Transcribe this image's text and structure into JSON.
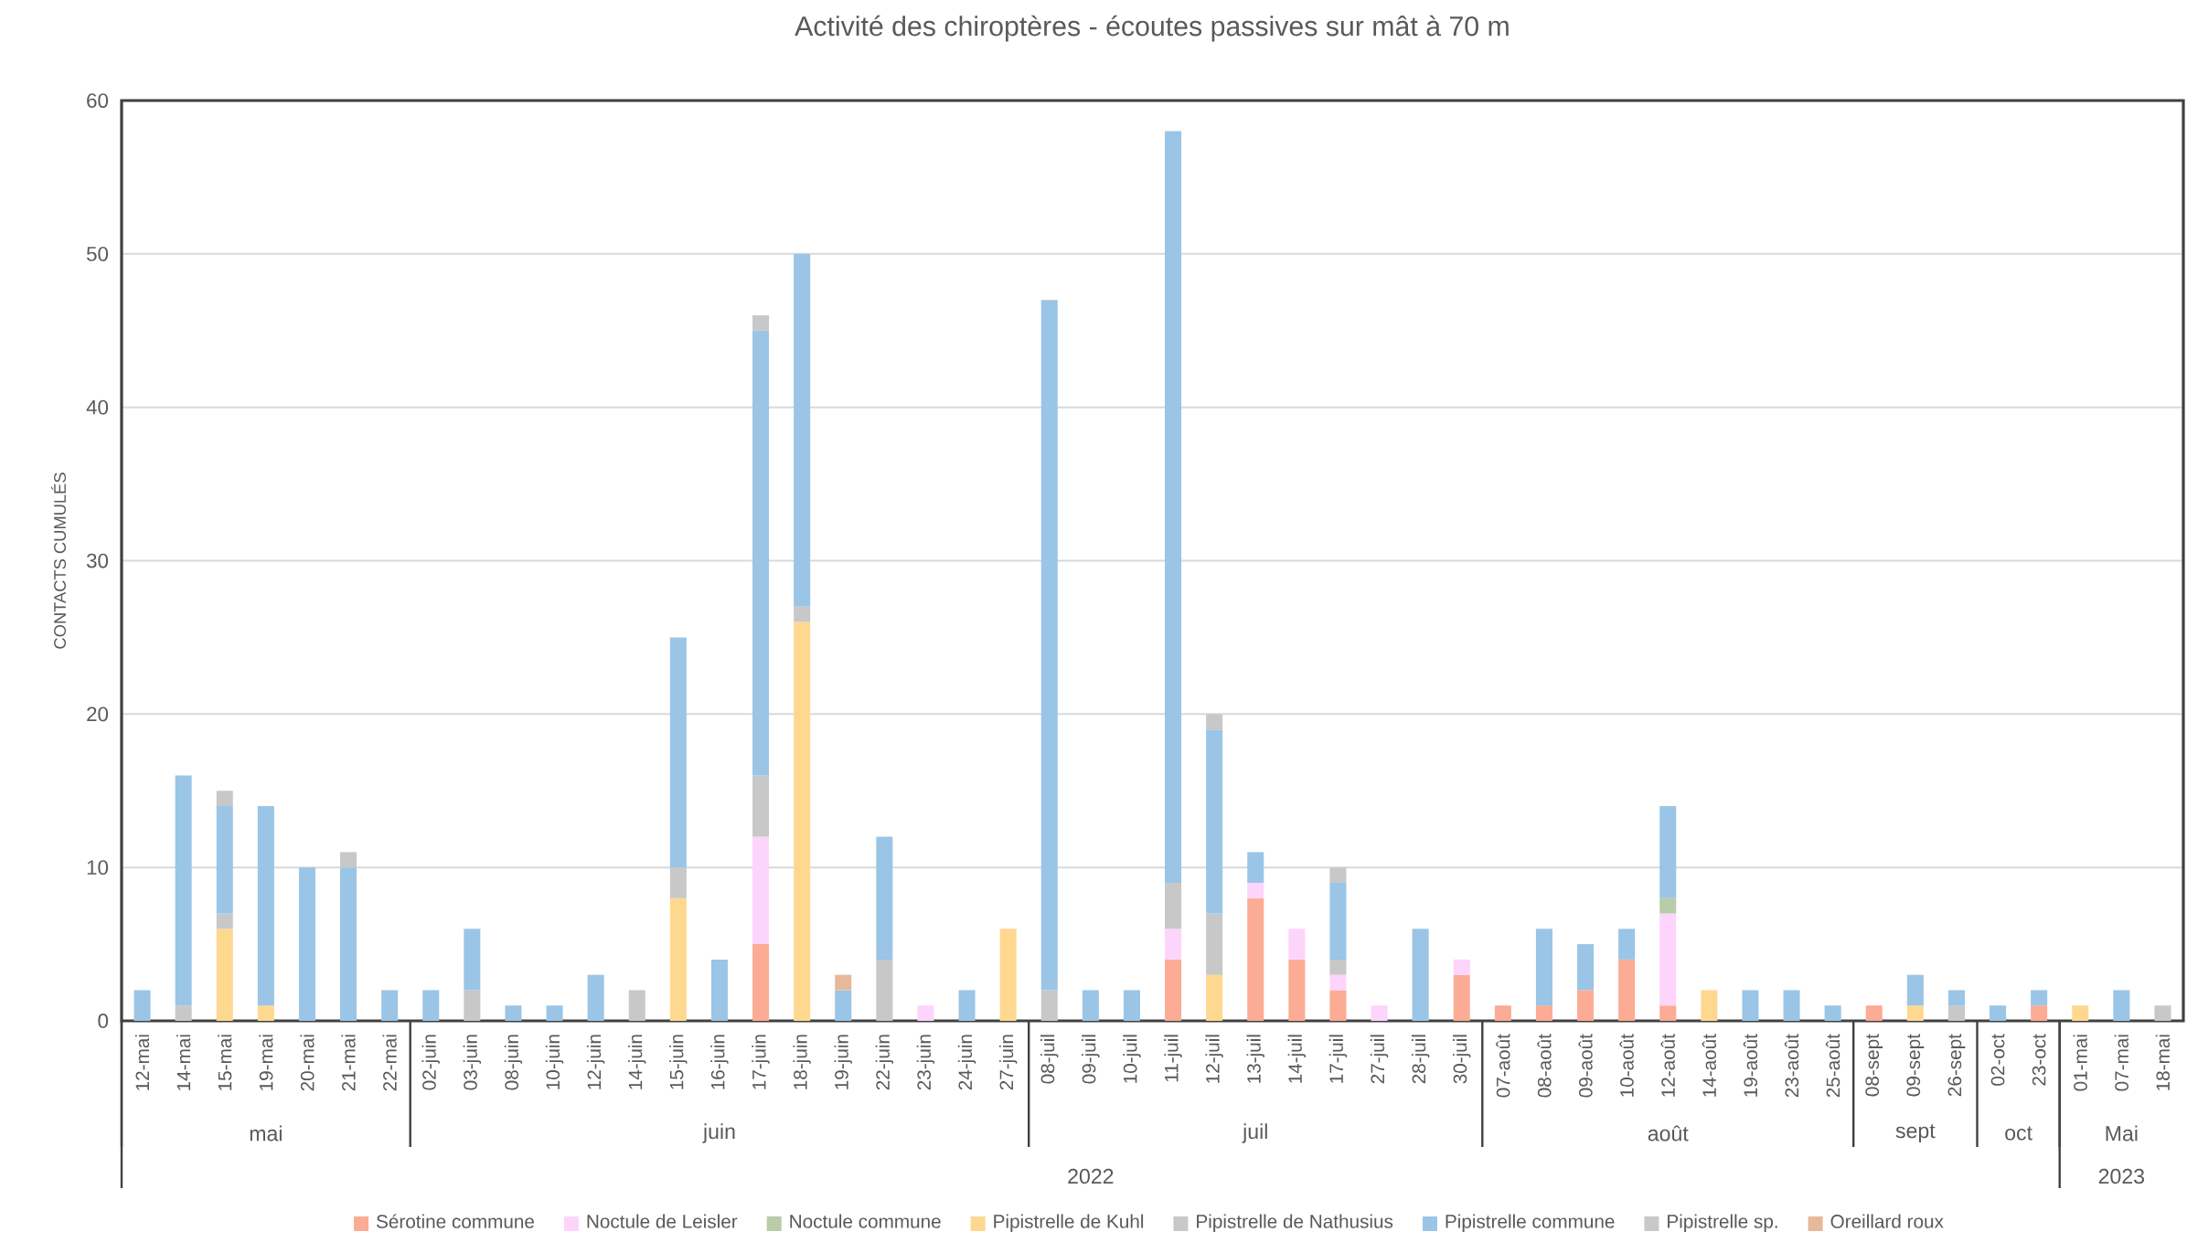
{
  "chart_data": {
    "type": "bar",
    "stacked": true,
    "title": "Activité des chiroptères - écoutes passives sur mât à 70 m",
    "ylabel": "CONTACTS CUMULÉS",
    "categories": [
      "12-mai",
      "14-mai",
      "15-mai",
      "19-mai",
      "20-mai",
      "21-mai",
      "22-mai",
      "02-juin",
      "03-juin",
      "08-juin",
      "10-juin",
      "12-juin",
      "14-juin",
      "15-juin",
      "16-juin",
      "17-juin",
      "18-juin",
      "19-juin",
      "22-juin",
      "23-juin",
      "24-juin",
      "27-juin",
      "08-juil",
      "09-juil",
      "10-juil",
      "11-juil",
      "12-juil",
      "13-juil",
      "14-juil",
      "17-juil",
      "27-juil",
      "28-juil",
      "30-juil",
      "07-août",
      "08-août",
      "09-août",
      "10-août",
      "12-août",
      "14-août",
      "19-août",
      "23-août",
      "25-août",
      "08-sept",
      "09-sept",
      "26-sept",
      "02-oct",
      "23-oct",
      "01-mai",
      "07-mai",
      "18-mai"
    ],
    "series": [
      {
        "name": "Sérotine commune",
        "color": "#fcab94",
        "values": [
          null,
          null,
          null,
          null,
          null,
          null,
          null,
          null,
          null,
          null,
          null,
          null,
          null,
          null,
          null,
          5,
          null,
          null,
          null,
          null,
          null,
          null,
          null,
          null,
          null,
          4,
          null,
          8,
          4,
          2,
          null,
          null,
          3,
          1,
          1,
          2,
          4,
          1,
          null,
          null,
          null,
          null,
          1,
          null,
          null,
          null,
          1,
          null,
          null,
          null
        ]
      },
      {
        "name": "Noctule de Leisler",
        "color": "#fdd4fc",
        "values": [
          null,
          null,
          null,
          null,
          null,
          null,
          null,
          null,
          null,
          null,
          null,
          null,
          null,
          null,
          null,
          7,
          null,
          null,
          null,
          1,
          null,
          null,
          null,
          null,
          null,
          2,
          null,
          1,
          2,
          1,
          1,
          null,
          1,
          null,
          null,
          null,
          null,
          6,
          null,
          null,
          null,
          null,
          null,
          null,
          null,
          null,
          null,
          null,
          null,
          null
        ]
      },
      {
        "name": "Noctule commune",
        "color": "#b8cca8",
        "values": [
          null,
          null,
          null,
          null,
          null,
          null,
          null,
          null,
          null,
          null,
          null,
          null,
          null,
          null,
          null,
          null,
          null,
          null,
          null,
          null,
          null,
          null,
          null,
          null,
          null,
          null,
          null,
          null,
          null,
          null,
          null,
          null,
          null,
          null,
          null,
          null,
          null,
          1,
          null,
          null,
          null,
          null,
          null,
          null,
          null,
          null,
          null,
          null,
          null,
          null
        ]
      },
      {
        "name": "Pipistrelle de Kuhl",
        "color": "#fed88f",
        "values": [
          null,
          null,
          6,
          1,
          null,
          null,
          null,
          null,
          null,
          null,
          null,
          null,
          null,
          8,
          null,
          null,
          26,
          null,
          null,
          null,
          null,
          6,
          null,
          null,
          null,
          null,
          3,
          null,
          null,
          null,
          null,
          null,
          null,
          null,
          null,
          null,
          null,
          null,
          2,
          null,
          null,
          null,
          null,
          1,
          null,
          null,
          null,
          1,
          null,
          null
        ]
      },
      {
        "name": "Pipistrelle de Nathusius",
        "color": "#c8c8c8",
        "values": [
          null,
          1,
          1,
          null,
          null,
          null,
          null,
          null,
          2,
          null,
          null,
          null,
          2,
          2,
          null,
          4,
          1,
          null,
          4,
          null,
          null,
          null,
          2,
          null,
          null,
          3,
          4,
          null,
          null,
          1,
          null,
          null,
          null,
          null,
          null,
          null,
          null,
          null,
          null,
          null,
          null,
          null,
          null,
          null,
          1,
          null,
          null,
          null,
          null,
          1
        ]
      },
      {
        "name": "Pipistrelle commune",
        "color": "#9ac5e6",
        "values": [
          2,
          15,
          7,
          13,
          10,
          10,
          2,
          2,
          4,
          1,
          1,
          3,
          null,
          15,
          4,
          29,
          23,
          2,
          8,
          null,
          2,
          null,
          45,
          2,
          2,
          49,
          12,
          2,
          null,
          5,
          null,
          6,
          null,
          null,
          5,
          3,
          2,
          6,
          null,
          2,
          2,
          1,
          null,
          2,
          1,
          1,
          1,
          null,
          2,
          null
        ]
      },
      {
        "name": "Pipistrelle sp.",
        "color": "#c8c8c8",
        "values": [
          null,
          null,
          1,
          null,
          null,
          1,
          null,
          null,
          null,
          null,
          null,
          null,
          null,
          null,
          null,
          1,
          null,
          null,
          null,
          null,
          null,
          null,
          null,
          null,
          null,
          null,
          1,
          null,
          null,
          1,
          null,
          null,
          null,
          null,
          null,
          null,
          null,
          null,
          null,
          null,
          null,
          null,
          null,
          null,
          null,
          null,
          null,
          null,
          null,
          null
        ]
      },
      {
        "name": "Oreillard roux",
        "color": "#e6b99a",
        "values": [
          null,
          null,
          null,
          null,
          null,
          null,
          null,
          null,
          null,
          null,
          null,
          null,
          null,
          null,
          null,
          null,
          null,
          1,
          null,
          null,
          null,
          null,
          null,
          null,
          null,
          null,
          null,
          null,
          null,
          null,
          null,
          null,
          null,
          null,
          null,
          null,
          null,
          null,
          null,
          null,
          null,
          null,
          null,
          null,
          null,
          null,
          null,
          null,
          null,
          null
        ]
      }
    ],
    "ylim": [
      0,
      60
    ],
    "yticks": [
      0,
      10,
      20,
      30,
      40,
      50,
      60
    ],
    "grid": "y",
    "legend": "bottom",
    "annotations": [
      "mai",
      "juin",
      "juil",
      "août",
      "sept",
      "oct",
      "Mai",
      "2022",
      "2023"
    ]
  }
}
